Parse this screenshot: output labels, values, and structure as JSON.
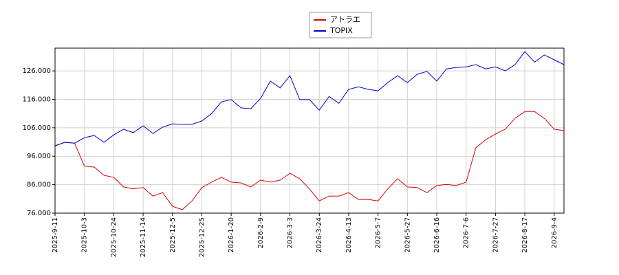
{
  "chart_data": {
    "type": "line",
    "categories": [
      "2025-9-11",
      null,
      null,
      "2025-10-3",
      null,
      null,
      "2025-10-24",
      null,
      null,
      "2025-11-14",
      null,
      null,
      "2025-12-5",
      null,
      null,
      "2025-12-25",
      null,
      null,
      "2026-1-20",
      null,
      null,
      "2026-2-9",
      null,
      null,
      "2026-3-3",
      null,
      null,
      "2026-3-24",
      null,
      null,
      "2026-4-13",
      null,
      null,
      "2026-5-7",
      null,
      null,
      "2026-5-27",
      null,
      null,
      "2026-6-16",
      null,
      null,
      "2026-7-6",
      null,
      null,
      "2026-7-27",
      null,
      null,
      "2026-8-17",
      null,
      null,
      "2026-9-4",
      null
    ],
    "series": [
      {
        "name": "アトラエ",
        "color": "#dd0000",
        "values": [
          99.7,
          100.9,
          100.6,
          92.5,
          92.2,
          89.3,
          88.6,
          85.2,
          84.5,
          85,
          82,
          83.2,
          78.4,
          77.2,
          80.3,
          85,
          86.9,
          88.6,
          86.9,
          86.6,
          85.2,
          87.6,
          86.9,
          87.6,
          90,
          88.1,
          84.5,
          80.3,
          82,
          82,
          83.2,
          80.8,
          80.8,
          80.3,
          84.5,
          88.1,
          85.2,
          85,
          83.2,
          85.7,
          86.1,
          85.7,
          86.9,
          99,
          101.8,
          103.8,
          105.5,
          109.3,
          111.7,
          111.7,
          109.3,
          105.5,
          105
        ]
      },
      {
        "name": "TOPIX",
        "color": "#0000cc",
        "values": [
          99.6,
          100.9,
          100.6,
          102.5,
          103.3,
          100.9,
          103.5,
          105.5,
          104.3,
          106.7,
          104,
          106.2,
          107.4,
          107.2,
          107.2,
          108.4,
          111,
          115.1,
          115.9,
          113,
          112.7,
          116.3,
          122.4,
          120,
          124.3,
          115.9,
          115.9,
          112.2,
          117,
          114.6,
          119.5,
          120.4,
          119.5,
          119,
          121.9,
          124.3,
          121.9,
          124.8,
          125.8,
          122.4,
          126.7,
          127.2,
          127.4,
          128.2,
          126.7,
          127.4,
          126,
          128.2,
          132.8,
          129.1,
          131.6,
          129.9,
          128.2
        ]
      }
    ],
    "ylim": [
      76,
      134
    ],
    "yticks": [
      {
        "value": 76,
        "label": "76.000"
      },
      {
        "value": 86,
        "label": "86.000"
      },
      {
        "value": 96,
        "label": "96.000"
      },
      {
        "value": 106,
        "label": "106.000"
      },
      {
        "value": 116,
        "label": "116.000"
      },
      {
        "value": 126,
        "label": "126.000"
      }
    ],
    "grid": true,
    "legend": "top"
  }
}
